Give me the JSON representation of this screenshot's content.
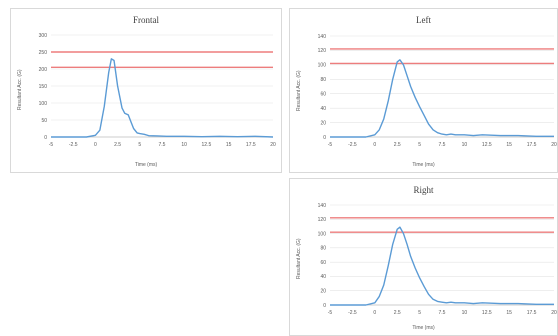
{
  "chart_data": [
    {
      "type": "line",
      "title": "Frontal",
      "xlabel": "Time (ms)",
      "ylabel": "Resultant Acc. (G)",
      "xlim": [
        -5,
        20
      ],
      "ylim": [
        0,
        300
      ],
      "x_ticks": [
        "-5",
        "-2.5",
        "0",
        "2.5",
        "5",
        "7.5",
        "10",
        "12.5",
        "15",
        "17.5",
        "20"
      ],
      "y_ticks": [
        "0",
        "50",
        "100",
        "150",
        "200",
        "250",
        "300"
      ],
      "grid": true,
      "reference_lines": [
        250,
        205
      ],
      "series": [
        {
          "color": "#5b9bd5",
          "x": [
            -5,
            -1,
            0,
            0.5,
            1,
            1.5,
            1.8,
            2.1,
            2.5,
            3,
            3.3,
            3.7,
            4,
            4.3,
            4.7,
            5,
            5.5,
            6,
            7,
            8,
            10,
            12,
            14,
            16,
            18,
            20
          ],
          "y": [
            0,
            0,
            5,
            20,
            90,
            190,
            230,
            225,
            150,
            85,
            70,
            65,
            45,
            25,
            12,
            10,
            8,
            4,
            3,
            2,
            2,
            1,
            2,
            1,
            2,
            0
          ]
        }
      ],
      "reference_color": "#ed7d7d"
    },
    {
      "type": "line",
      "title": "Left",
      "xlabel": "Time (ms)",
      "ylabel": "Resultant Acc. (G)",
      "xlim": [
        -5,
        20
      ],
      "ylim": [
        0,
        140
      ],
      "x_ticks": [
        "-5",
        "-2.5",
        "0",
        "2.5",
        "5",
        "7.5",
        "10",
        "12.5",
        "15",
        "17.5",
        "20"
      ],
      "y_ticks": [
        "0",
        "20",
        "40",
        "60",
        "80",
        "100",
        "120",
        "140"
      ],
      "grid": true,
      "reference_lines": [
        122,
        102
      ],
      "series": [
        {
          "color": "#5b9bd5",
          "x": [
            -5,
            -1,
            0,
            0.5,
            1,
            1.5,
            2,
            2.5,
            2.8,
            3.2,
            3.6,
            4,
            4.5,
            5,
            5.5,
            6,
            6.5,
            7,
            7.5,
            8,
            8.5,
            9,
            10,
            11,
            12,
            14,
            16,
            18,
            20
          ],
          "y": [
            0,
            0,
            3,
            10,
            25,
            50,
            80,
            104,
            107,
            100,
            85,
            70,
            55,
            42,
            30,
            18,
            10,
            6,
            4,
            3,
            4,
            3,
            3,
            2,
            3,
            2,
            2,
            1,
            1
          ]
        }
      ],
      "reference_color": "#ed7d7d"
    },
    {
      "type": "line",
      "title": "Right",
      "xlabel": "Time (ms)",
      "ylabel": "Resultant Acc. (G)",
      "xlim": [
        -5,
        20
      ],
      "ylim": [
        0,
        140
      ],
      "x_ticks": [
        "-5",
        "-2.5",
        "0",
        "2.5",
        "5",
        "7.5",
        "10",
        "12.5",
        "15",
        "17.5",
        "20"
      ],
      "y_ticks": [
        "0",
        "20",
        "40",
        "60",
        "80",
        "100",
        "120",
        "140"
      ],
      "grid": true,
      "reference_lines": [
        122,
        102
      ],
      "series": [
        {
          "color": "#5b9bd5",
          "x": [
            -5,
            -1,
            0,
            0.5,
            1,
            1.5,
            2,
            2.5,
            2.8,
            3.2,
            3.6,
            4,
            4.5,
            5,
            5.5,
            6,
            6.5,
            7,
            7.5,
            8,
            8.5,
            9,
            10,
            11,
            12,
            14,
            16,
            18,
            20
          ],
          "y": [
            0,
            0,
            3,
            12,
            28,
            55,
            85,
            106,
            109,
            100,
            85,
            68,
            52,
            38,
            26,
            15,
            8,
            5,
            4,
            3,
            4,
            3,
            3,
            2,
            3,
            2,
            2,
            1,
            1
          ]
        }
      ],
      "reference_color": "#ed7d7d"
    }
  ]
}
